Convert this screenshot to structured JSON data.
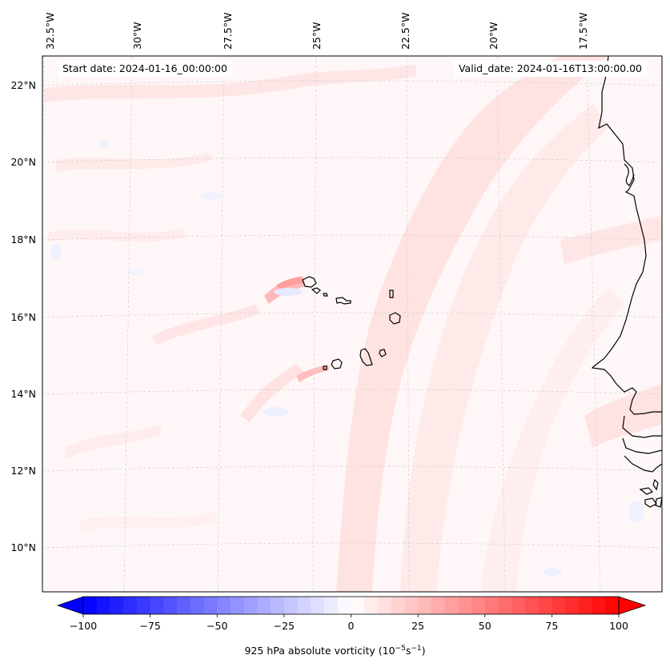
{
  "map": {
    "start_date_label": "Start date: 2024-01-16_00:00:00",
    "valid_date_label": "Valid_date: 2024-01-16T13:00:00.00",
    "lon_labels": [
      "32.5°W",
      "30°W",
      "27.5°W",
      "25°W",
      "22.5°W",
      "20°W",
      "17.5°W"
    ],
    "lat_labels": [
      "22°N",
      "20°N",
      "18°N",
      "16°N",
      "14°N",
      "12°N",
      "10°N"
    ],
    "field": "925 hPa absolute vorticity",
    "colors": {
      "positive": "#ff0000",
      "negative": "#0000ff",
      "neutral": "#ffffff",
      "coastline": "#000000",
      "gridline": "#cccccc"
    }
  },
  "colorbar": {
    "label_prefix": "925 hPa absolute vorticity (10",
    "label_exp1": "−5",
    "label_mid": "s",
    "label_exp2": "−1",
    "label_suffix": ")",
    "tick_labels": [
      "−100",
      "−75",
      "−50",
      "−25",
      "0",
      "25",
      "50",
      "75",
      "100"
    ],
    "ticks": [
      -100,
      -75,
      -50,
      -25,
      0,
      25,
      50,
      75,
      100
    ],
    "vmin": -100,
    "vmax": 100,
    "step": 5
  }
}
